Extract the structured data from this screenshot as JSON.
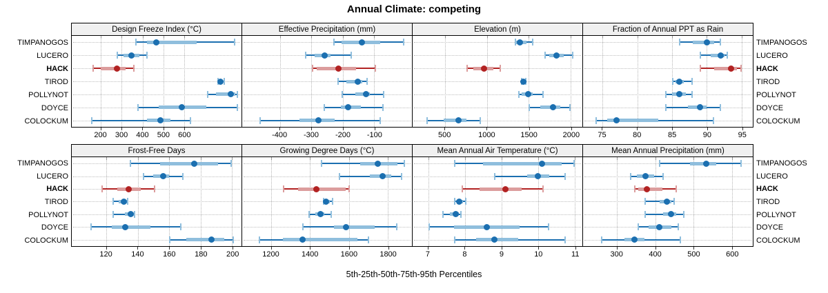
{
  "title": "Annual Climate: competing",
  "caption": "5th-25th-50th-75th-95th Percentiles",
  "sites": [
    "TIMPANOGOS",
    "LUCERO",
    "HACK",
    "TIROD",
    "POLLYNOT",
    "DOYCE",
    "COLOCKUM"
  ],
  "highlight_site": "HACK",
  "colors": {
    "series_main": "#1b6fb0",
    "series_light": "#8fbedd",
    "highlight_main": "#b22222",
    "highlight_light": "#dc9d9d",
    "strip_bg": "#f0f0f0",
    "grid": "#b4b4b4",
    "border": "#000000"
  },
  "chart_data": {
    "type": "dotplot-percentile-intervals",
    "layout_grid": [
      2,
      4
    ],
    "percentile_levels": [
      5,
      25,
      50,
      75,
      95
    ],
    "grid_on": true,
    "panels": [
      {
        "title": "Design Freeze Index (°C)",
        "xlim": [
          60,
          875
        ],
        "ticks": [
          200,
          300,
          400,
          500,
          600
        ],
        "series": [
          {
            "name": "TIMPANOGOS",
            "values": [
              365,
              420,
              465,
              660,
              845
            ]
          },
          {
            "name": "LUCERO",
            "values": [
              275,
              310,
              345,
              385,
              425
            ]
          },
          {
            "name": "HACK",
            "values": [
              158,
              200,
              277,
              320,
              363
            ]
          },
          {
            "name": "TIROD",
            "values": [
              758,
              766,
              775,
              786,
              797
            ]
          },
          {
            "name": "POLLYNOT",
            "values": [
              709,
              753,
              824,
              846,
              858
            ]
          },
          {
            "name": "DOYCE",
            "values": [
              374,
              478,
              588,
              707,
              858
            ]
          },
          {
            "name": "COLOCKUM",
            "values": [
              152,
              420,
              487,
              535,
              632
            ]
          }
        ]
      },
      {
        "title": "Effective Precipitation (mm)",
        "xlim": [
          -520,
          20
        ],
        "ticks": [
          -400,
          -300,
          -200,
          -100
        ],
        "series": [
          {
            "name": "TIMPANOGOS",
            "values": [
              -230,
              -205,
              -140,
              -80,
              -5
            ]
          },
          {
            "name": "LUCERO",
            "values": [
              -320,
              -290,
              -258,
              -240,
              -170
            ]
          },
          {
            "name": "HACK",
            "values": [
              -298,
              -282,
              -213,
              -158,
              -95
            ]
          },
          {
            "name": "TIROD",
            "values": [
              -216,
              -189,
              -153,
              -138,
              -120
            ]
          },
          {
            "name": "POLLYNOT",
            "values": [
              -205,
              -160,
              -126,
              -113,
              -67
            ]
          },
          {
            "name": "DOYCE",
            "values": [
              -262,
              -207,
              -182,
              -142,
              -69
            ]
          },
          {
            "name": "COLOCKUM",
            "values": [
              -465,
              -338,
              -278,
              -225,
              -78
            ]
          }
        ]
      },
      {
        "title": "Elevation (m)",
        "xlim": [
          115,
          2140
        ],
        "ticks": [
          500,
          1000,
          1500,
          2000
        ],
        "series": [
          {
            "name": "TIMPANOGOS",
            "values": [
              1330,
              1352,
              1396,
              1470,
              1552
            ]
          },
          {
            "name": "LUCERO",
            "values": [
              1690,
              1745,
              1830,
              1915,
              2035
            ]
          },
          {
            "name": "HACK",
            "values": [
              760,
              840,
              970,
              1075,
              1170
            ]
          },
          {
            "name": "TIROD",
            "values": [
              1407,
              1420,
              1437,
              1453,
              1470
            ]
          },
          {
            "name": "POLLYNOT",
            "values": [
              1375,
              1415,
              1490,
              1550,
              1675
            ]
          },
          {
            "name": "DOYCE",
            "values": [
              1500,
              1640,
              1790,
              1875,
              2000
            ]
          },
          {
            "name": "COLOCKUM",
            "values": [
              280,
              485,
              665,
              760,
              930
            ]
          }
        ]
      },
      {
        "title": "Fraction of Annual PPT as Rain",
        "xlim": [
          72.2,
          96.6
        ],
        "ticks": [
          75,
          80,
          85,
          90,
          95
        ],
        "series": [
          {
            "name": "TIMPANOGOS",
            "values": [
              86,
              88,
              90,
              91,
              92
            ]
          },
          {
            "name": "LUCERO",
            "values": [
              89,
              90.5,
              92,
              92.5,
              93
            ]
          },
          {
            "name": "HACK",
            "values": [
              89,
              91,
              93.5,
              94.3,
              95
            ]
          },
          {
            "name": "TIROD",
            "values": [
              85,
              85.5,
              86,
              86.7,
              88
            ]
          },
          {
            "name": "POLLYNOT",
            "values": [
              84,
              85,
              86,
              87,
              88
            ]
          },
          {
            "name": "DOYCE",
            "values": [
              84,
              87.3,
              89,
              90,
              92
            ]
          },
          {
            "name": "COLOCKUM",
            "values": [
              74,
              75.7,
              77,
              83,
              91
            ]
          }
        ]
      },
      {
        "title": "Frost-Free Days",
        "xlim": [
          98,
          206
        ],
        "ticks": [
          120,
          140,
          160,
          180,
          200
        ],
        "series": [
          {
            "name": "TIMPANOGOS",
            "values": [
              135,
              154,
              176,
              191,
              200
            ]
          },
          {
            "name": "LUCERO",
            "values": [
              143,
              150,
              156,
              160,
              169
            ]
          },
          {
            "name": "HACK",
            "values": [
              117,
              127,
              134,
              142,
              151
            ]
          },
          {
            "name": "TIROD",
            "values": [
              124,
              128,
              131,
              133,
              134
            ]
          },
          {
            "name": "POLLYNOT",
            "values": [
              124,
              132,
              135.5,
              137.5,
              138.5
            ]
          },
          {
            "name": "DOYCE",
            "values": [
              110,
              123.5,
              132,
              148,
              168
            ]
          },
          {
            "name": "COLOCKUM",
            "values": [
              160,
              171,
              187,
              195,
              201
            ]
          }
        ]
      },
      {
        "title": "Growing Degree Days (°C)",
        "xlim": [
          1050,
          1925
        ],
        "ticks": [
          1200,
          1400,
          1600,
          1800
        ],
        "series": [
          {
            "name": "TIMPANOGOS",
            "values": [
              1455,
              1660,
              1750,
              1850,
              1890
            ]
          },
          {
            "name": "LUCERO",
            "values": [
              1547,
              1708,
              1773,
              1820,
              1876
            ]
          },
          {
            "name": "HACK",
            "values": [
              1259,
              1338,
              1432,
              1585,
              1606
            ]
          },
          {
            "name": "TIROD",
            "values": [
              1467,
              1474,
              1481,
              1500,
              1520
            ]
          },
          {
            "name": "POLLYNOT",
            "values": [
              1391,
              1426,
              1455,
              1473,
              1514
            ]
          },
          {
            "name": "DOYCE",
            "values": [
              1359,
              1524,
              1585,
              1732,
              1849
            ]
          },
          {
            "name": "COLOCKUM",
            "values": [
              1135,
              1261,
              1361,
              1644,
              1706
            ]
          }
        ]
      },
      {
        "title": "Mean Annual Air Temperature (°C)",
        "xlim": [
          6.57,
          11.21
        ],
        "ticks": [
          7,
          8,
          9,
          10,
          11
        ],
        "series": [
          {
            "name": "TIMPANOGOS",
            "values": [
              7.7,
              8.5,
              10.1,
              10.65,
              11.0
            ]
          },
          {
            "name": "LUCERO",
            "values": [
              8.8,
              9.7,
              10.0,
              10.3,
              10.75
            ]
          },
          {
            "name": "HACK",
            "values": [
              7.9,
              8.4,
              9.1,
              9.55,
              10.15
            ]
          },
          {
            "name": "TIROD",
            "values": [
              7.7,
              7.78,
              7.85,
              7.95,
              8.05
            ]
          },
          {
            "name": "POLLYNOT",
            "values": [
              7.38,
              7.58,
              7.75,
              7.84,
              7.9
            ]
          },
          {
            "name": "DOYCE",
            "values": [
              7.0,
              7.7,
              8.6,
              9.5,
              10.3
            ]
          },
          {
            "name": "COLOCKUM",
            "values": [
              7.7,
              8.3,
              8.8,
              9.45,
              10.75
            ]
          }
        ]
      },
      {
        "title": "Mean Annual Precipitation (mm)",
        "xlim": [
          211,
          655
        ],
        "ticks": [
          300,
          400,
          500,
          600
        ],
        "series": [
          {
            "name": "TIMPANOGOS",
            "values": [
              410,
              490,
              533,
              560,
              627
            ]
          },
          {
            "name": "LUCERO",
            "values": [
              334,
              352,
              374,
              397,
              423
            ]
          },
          {
            "name": "HACK",
            "values": [
              344,
              356,
              378,
              418,
              456
            ]
          },
          {
            "name": "TIROD",
            "values": [
              372,
              412,
              430,
              442,
              451
            ]
          },
          {
            "name": "POLLYNOT",
            "values": [
              372,
              421,
              442,
              454,
              476
            ]
          },
          {
            "name": "DOYCE",
            "values": [
              354,
              382,
              410,
              442,
              462
            ]
          },
          {
            "name": "COLOCKUM",
            "values": [
              258,
              319,
              346,
              372,
              468
            ]
          }
        ]
      }
    ]
  }
}
